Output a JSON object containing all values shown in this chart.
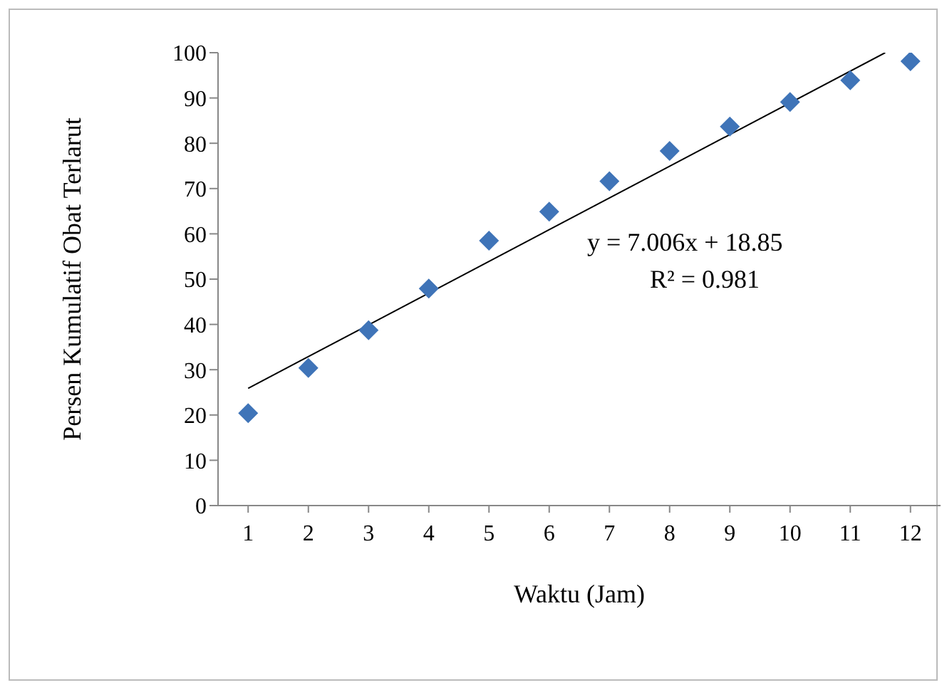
{
  "chart_data": {
    "type": "scatter",
    "xlabel": "Waktu (Jam)",
    "ylabel": "Persen  Kumulatif  Obat Terlarut",
    "x": [
      1,
      2,
      3,
      4,
      5,
      6,
      7,
      8,
      9,
      10,
      11,
      12
    ],
    "xlim": [
      0.5,
      12.5
    ],
    "xticks": [
      1,
      2,
      3,
      4,
      5,
      6,
      7,
      8,
      9,
      10,
      11,
      12
    ],
    "ylim": [
      0,
      100
    ],
    "yticks": [
      0,
      10,
      20,
      30,
      40,
      50,
      60,
      70,
      80,
      90,
      100
    ],
    "marker": "diamond",
    "series": [
      {
        "color": "#3f74b8",
        "values": [
          20.4,
          30.4,
          38.7,
          47.9,
          58.5,
          64.9,
          71.6,
          78.3,
          83.7,
          89.1,
          93.9,
          98.1
        ]
      },
      {
        "type": "line",
        "color": "#000000",
        "x": [
          1,
          11.58
        ],
        "values": [
          25.9,
          100
        ],
        "marker": "none"
      }
    ],
    "annotations": [
      "y = 7.006x + 18.85",
      "R² = 0.981"
    ]
  }
}
